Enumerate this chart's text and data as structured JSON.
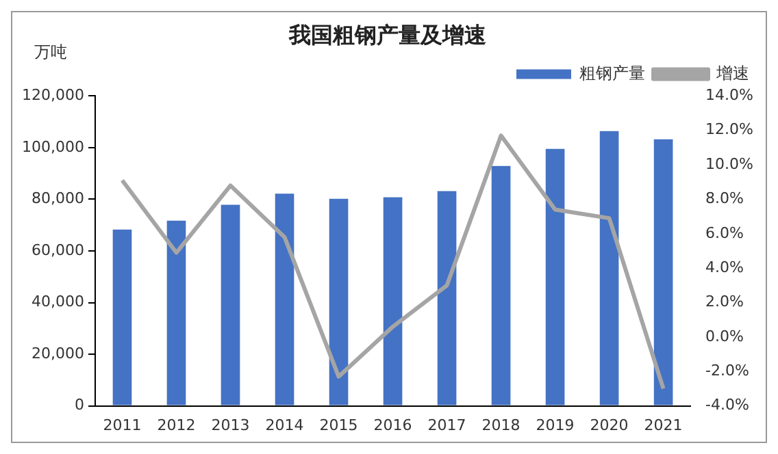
{
  "chart_data": {
    "type": "bar",
    "title": "我国粗钢产量及增速",
    "ylabel": "万吨",
    "categories": [
      "2011",
      "2012",
      "2013",
      "2014",
      "2015",
      "2016",
      "2017",
      "2018",
      "2019",
      "2020",
      "2021"
    ],
    "series": [
      {
        "name": "粗钢产量",
        "color": "#4472c4",
        "values": [
          68300,
          71700,
          77900,
          82200,
          80200,
          80800,
          83200,
          92900,
          99500,
          106400,
          103200
        ]
      },
      {
        "name": "增速",
        "type": "line",
        "axis": "y2",
        "color": "#a5a5a5",
        "values": [
          9.1,
          4.9,
          8.8,
          5.8,
          -2.3,
          0.6,
          3.0,
          11.7,
          7.4,
          6.9,
          -3.0
        ]
      }
    ],
    "ylim": [
      0,
      120000
    ],
    "yticks": [
      {
        "value": 0,
        "label": "0"
      },
      {
        "value": 20000,
        "label": "20,000"
      },
      {
        "value": 40000,
        "label": "40,000"
      },
      {
        "value": 60000,
        "label": "60,000"
      },
      {
        "value": 80000,
        "label": "80,000"
      },
      {
        "value": 100000,
        "label": "100,000"
      },
      {
        "value": 120000,
        "label": "120,000"
      }
    ],
    "y2lim": [
      -4,
      14
    ],
    "y2ticks": [
      {
        "value": -4,
        "label": "-4.0%"
      },
      {
        "value": -2,
        "label": "-2.0%"
      },
      {
        "value": 0,
        "label": "0.0%"
      },
      {
        "value": 2,
        "label": "2.0%"
      },
      {
        "value": 4,
        "label": "4.0%"
      },
      {
        "value": 6,
        "label": "6.0%"
      },
      {
        "value": 8,
        "label": "8.0%"
      },
      {
        "value": 10,
        "label": "10.0%"
      },
      {
        "value": 12,
        "label": "12.0%"
      },
      {
        "value": 14,
        "label": "14.0%"
      }
    ],
    "grid": false,
    "legend": "top right",
    "marker": "none"
  }
}
